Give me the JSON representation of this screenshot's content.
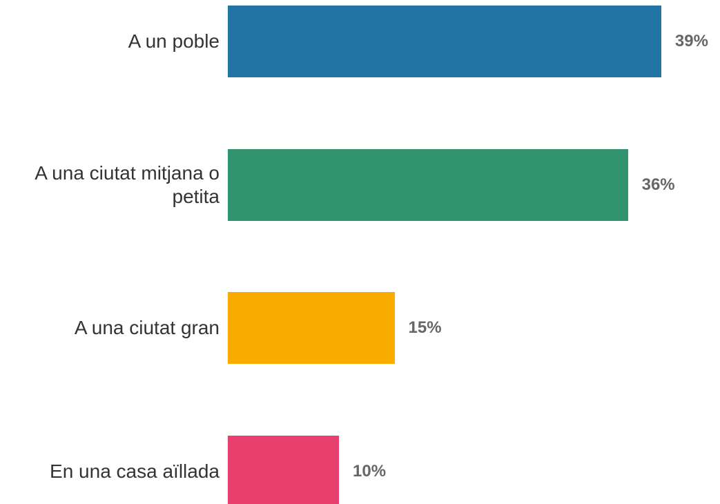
{
  "chart_data": {
    "type": "bar",
    "orientation": "horizontal",
    "categories": [
      "A un poble",
      "A una ciutat mitjana o petita",
      "A una ciutat gran",
      "En una casa aïllada"
    ],
    "values": [
      39,
      36,
      15,
      10
    ],
    "value_labels": [
      "39%",
      "36%",
      "15%",
      "10%"
    ],
    "colors": [
      "#2274a5",
      "#32936f",
      "#f9ab00",
      "#e83f6f"
    ]
  }
}
